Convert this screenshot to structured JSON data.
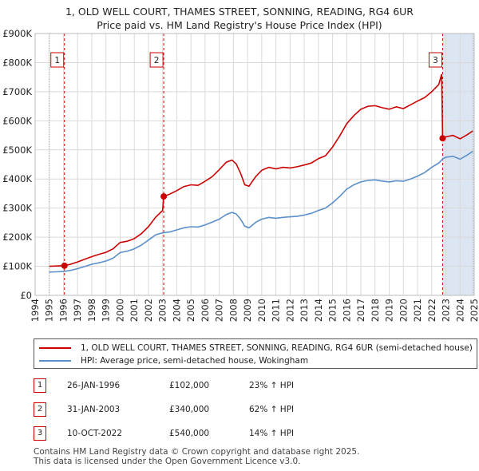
{
  "title": "1, OLD WELL COURT, THAMES STREET, SONNING, READING, RG4 6UR",
  "subtitle": "Price paid vs. HM Land Registry's House Price Index (HPI)",
  "colors": {
    "property": "#cc0000",
    "hpi": "#5b8fc9",
    "shade": "#dce6f2",
    "grid": "#d9d9d9"
  },
  "chart_data": {
    "type": "line",
    "title": "1, OLD WELL COURT, THAMES STREET, SONNING, READING, RG4 6UR",
    "subtitle": "Price paid vs. HM Land Registry's House Price Index (HPI)",
    "xlabel": "",
    "ylabel": "",
    "xlim": [
      1994,
      2025
    ],
    "ylim": [
      0,
      900000
    ],
    "y_ticks": [
      0,
      100000,
      200000,
      300000,
      400000,
      500000,
      600000,
      700000,
      800000,
      900000
    ],
    "y_tick_labels": [
      "£0",
      "£100K",
      "£200K",
      "£300K",
      "£400K",
      "£500K",
      "£600K",
      "£700K",
      "£800K",
      "£900K"
    ],
    "x_ticks": [
      1994,
      1995,
      1996,
      1997,
      1998,
      1999,
      2000,
      2001,
      2002,
      2003,
      2004,
      2005,
      2006,
      2007,
      2008,
      2009,
      2010,
      2011,
      2012,
      2013,
      2014,
      2015,
      2016,
      2017,
      2018,
      2019,
      2020,
      2021,
      2022,
      2023,
      2024,
      2025
    ],
    "x_tick_labels": [
      "1994",
      "1995",
      "1996",
      "1997",
      "1998",
      "1999",
      "2000",
      "2001",
      "2002",
      "2003",
      "2004",
      "2005",
      "2006",
      "2007",
      "2008",
      "2009",
      "2010",
      "2011",
      "2012",
      "2013",
      "2014",
      "2015",
      "2016",
      "2017",
      "2018",
      "2019",
      "2020",
      "2021",
      "2022",
      "2023",
      "2024",
      "2025"
    ],
    "grid": true,
    "data_start": 1995.0,
    "data_end": 2024.9,
    "series": [
      {
        "name": "1, OLD WELL COURT, THAMES STREET, SONNING, READING, RG4 6UR (semi-detached house)",
        "color": "#cc0000",
        "x": [
          1995.0,
          1995.5,
          1996.07,
          1996.5,
          1997.0,
          1997.5,
          1998.0,
          1998.5,
          1999.0,
          1999.5,
          2000.0,
          2000.5,
          2001.0,
          2001.5,
          2002.0,
          2002.5,
          2003.0,
          2003.08,
          2003.5,
          2004.0,
          2004.5,
          2005.0,
          2005.5,
          2006.0,
          2006.5,
          2007.0,
          2007.5,
          2007.9,
          2008.2,
          2008.5,
          2008.8,
          2009.1,
          2009.3,
          2009.6,
          2010.0,
          2010.5,
          2011.0,
          2011.5,
          2012.0,
          2012.5,
          2013.0,
          2013.5,
          2014.0,
          2014.5,
          2015.0,
          2015.5,
          2016.0,
          2016.5,
          2017.0,
          2017.5,
          2018.0,
          2018.5,
          2019.0,
          2019.5,
          2020.0,
          2020.5,
          2021.0,
          2021.5,
          2022.0,
          2022.5,
          2022.7,
          2022.77,
          2023.0,
          2023.5,
          2024.0,
          2024.5,
          2024.9
        ],
        "values": [
          100000,
          101000,
          102000,
          107000,
          115000,
          124000,
          133000,
          141000,
          148000,
          160000,
          182000,
          186000,
          195000,
          212000,
          236000,
          268000,
          292000,
          340000,
          348000,
          360000,
          374000,
          380000,
          378000,
          392000,
          408000,
          432000,
          458000,
          465000,
          452000,
          420000,
          380000,
          375000,
          390000,
          410000,
          430000,
          440000,
          435000,
          440000,
          438000,
          442000,
          448000,
          455000,
          470000,
          480000,
          510000,
          548000,
          590000,
          618000,
          640000,
          650000,
          652000,
          645000,
          640000,
          648000,
          642000,
          655000,
          668000,
          680000,
          700000,
          725000,
          760000,
          540000,
          545000,
          550000,
          538000,
          552000,
          565000
        ]
      },
      {
        "name": "HPI: Average price, semi-detached house, Wokingham",
        "color": "#5b8fc9",
        "x": [
          1995.0,
          1995.5,
          1996.0,
          1996.5,
          1997.0,
          1997.5,
          1998.0,
          1998.5,
          1999.0,
          1999.5,
          2000.0,
          2000.5,
          2001.0,
          2001.5,
          2002.0,
          2002.5,
          2003.0,
          2003.5,
          2004.0,
          2004.5,
          2005.0,
          2005.5,
          2006.0,
          2006.5,
          2007.0,
          2007.5,
          2007.9,
          2008.2,
          2008.5,
          2008.8,
          2009.1,
          2009.3,
          2009.6,
          2010.0,
          2010.5,
          2011.0,
          2011.5,
          2012.0,
          2012.5,
          2013.0,
          2013.5,
          2014.0,
          2014.5,
          2015.0,
          2015.5,
          2016.0,
          2016.5,
          2017.0,
          2017.5,
          2018.0,
          2018.5,
          2019.0,
          2019.5,
          2020.0,
          2020.5,
          2021.0,
          2021.5,
          2022.0,
          2022.5,
          2022.8,
          2023.0,
          2023.5,
          2024.0,
          2024.5,
          2024.9
        ],
        "values": [
          80000,
          81000,
          82000,
          86000,
          92000,
          99000,
          107000,
          112000,
          118000,
          128000,
          147000,
          152000,
          160000,
          173000,
          190000,
          208000,
          215000,
          218000,
          225000,
          232000,
          236000,
          235000,
          242000,
          252000,
          262000,
          278000,
          285000,
          280000,
          262000,
          238000,
          232000,
          240000,
          252000,
          262000,
          268000,
          265000,
          268000,
          270000,
          272000,
          276000,
          282000,
          292000,
          300000,
          318000,
          340000,
          365000,
          380000,
          390000,
          395000,
          397000,
          393000,
          390000,
          394000,
          392000,
          400000,
          410000,
          422000,
          440000,
          455000,
          470000,
          475000,
          478000,
          468000,
          482000,
          495000
        ]
      }
    ],
    "sales": [
      {
        "label": "1",
        "x": 1996.07,
        "price": 102000
      },
      {
        "label": "2",
        "x": 2003.08,
        "price": 340000
      },
      {
        "label": "3",
        "x": 2022.77,
        "price": 540000
      }
    ],
    "legend": {
      "position": "bottom",
      "entries": [
        "1, OLD WELL COURT, THAMES STREET, SONNING, READING, RG4 6UR (semi-detached house)",
        "HPI: Average price, semi-detached house, Wokingham"
      ]
    }
  },
  "table": {
    "rows": [
      {
        "num": "1",
        "date": "26-JAN-1996",
        "price": "£102,000",
        "hpi": "23% ↑ HPI"
      },
      {
        "num": "2",
        "date": "31-JAN-2003",
        "price": "£340,000",
        "hpi": "62% ↑ HPI"
      },
      {
        "num": "3",
        "date": "10-OCT-2022",
        "price": "£540,000",
        "hpi": "14% ↑ HPI"
      }
    ]
  },
  "footer": {
    "line1": "Contains HM Land Registry data © Crown copyright and database right 2025.",
    "line2": "This data is licensed under the Open Government Licence v3.0."
  }
}
